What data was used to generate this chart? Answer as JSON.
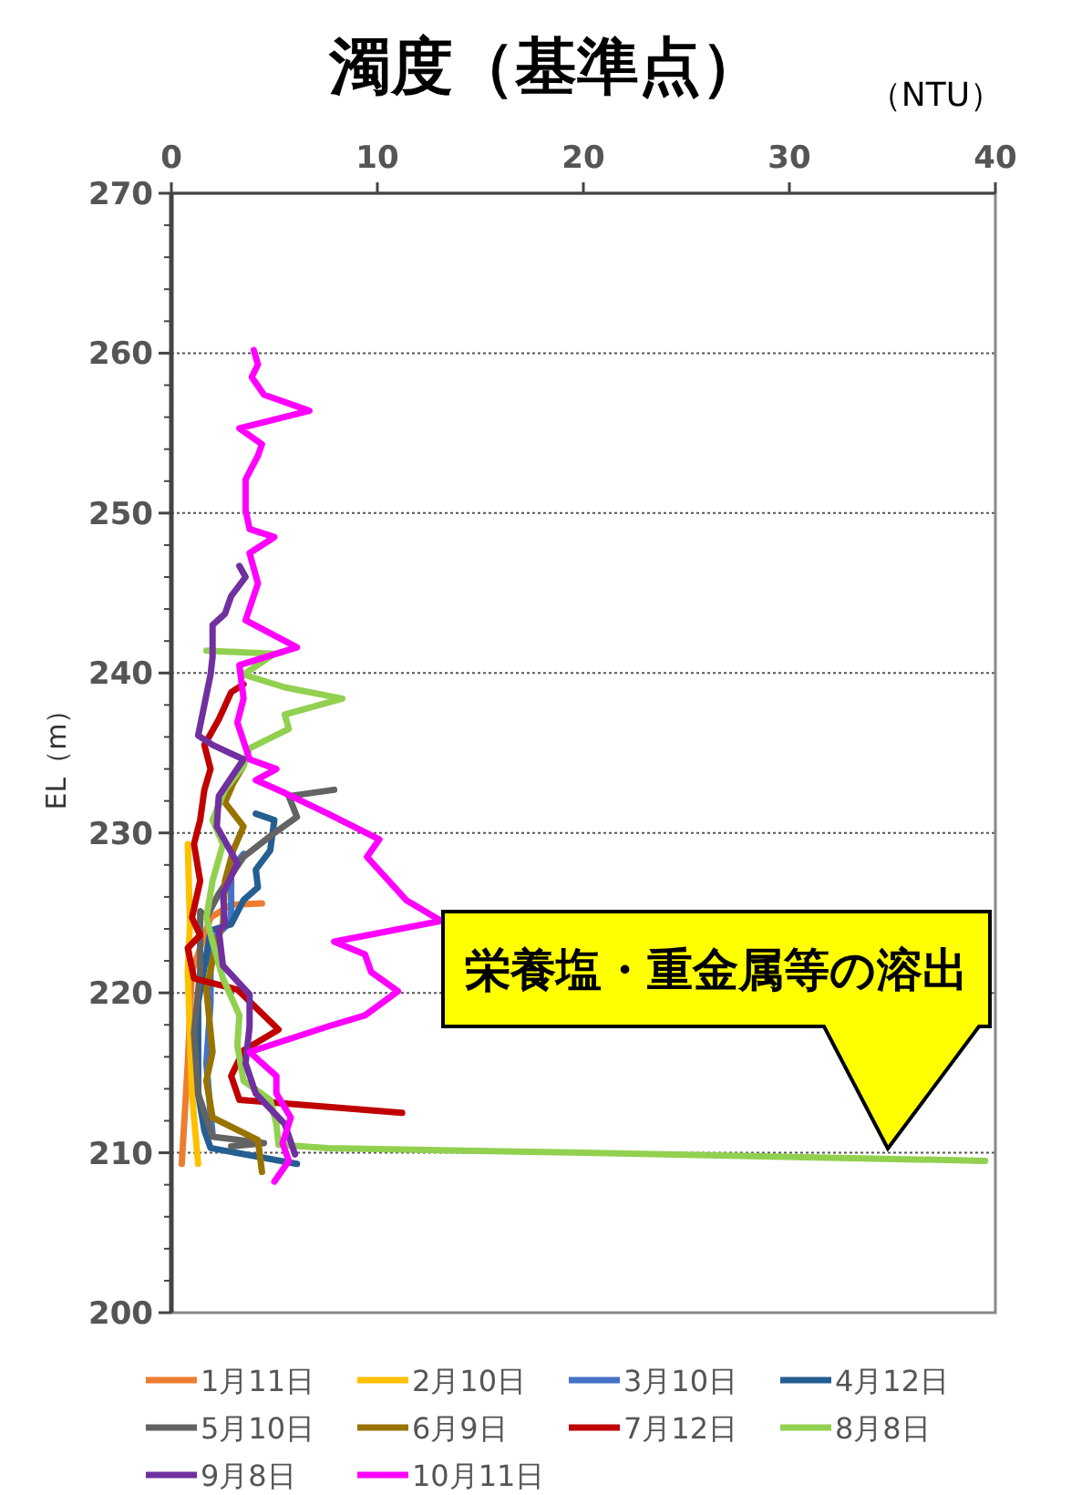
{
  "chart_data": {
    "type": "line",
    "title": "濁度（基準点）",
    "xlabel": "（NTU）",
    "ylabel": "EL（m）",
    "xlim": [
      0,
      40
    ],
    "xticks": [
      0,
      10,
      20,
      30,
      40
    ],
    "ylim": [
      200,
      270
    ],
    "yticks": [
      200,
      210,
      220,
      230,
      240,
      250,
      260,
      270
    ],
    "grid": "y",
    "legend": "bottom",
    "marker": "none",
    "line_style": "solid",
    "annotations": [
      "栄養塩・重金属等の溶出"
    ],
    "series": [
      {
        "name": "1月11日",
        "color": "#ed7d31",
        "x": [
          4.4,
          2.9,
          1.9,
          1.0,
          0.8,
          0.5
        ],
        "values": [
          225.6,
          225.5,
          224.7,
          221.3,
          215.6,
          209.3
        ]
      },
      {
        "name": "2月10日",
        "color": "#ffc000",
        "x": [
          0.8,
          0.9,
          0.8,
          1.0,
          1.3
        ],
        "values": [
          229.3,
          224.3,
          221.3,
          213.7,
          209.3
        ]
      },
      {
        "name": "3月10日",
        "color": "#4472c4",
        "x": [
          3.5,
          2.9,
          2.9,
          1.9,
          1.9,
          1.7,
          1.9,
          2.0
        ],
        "values": [
          228.7,
          227.7,
          224.5,
          223.2,
          219.4,
          215.6,
          212.5,
          211.2
        ]
      },
      {
        "name": "4月12日",
        "color": "#255e91",
        "x": [
          4.1,
          5.0,
          4.8,
          4.1,
          4.2,
          3.5,
          2.9,
          1.9,
          1.3,
          1.3,
          1.6,
          1.9,
          6.1
        ],
        "values": [
          231.2,
          230.8,
          228.9,
          227.7,
          226.6,
          225.8,
          224.3,
          223.9,
          219.4,
          213.7,
          211.4,
          210.3,
          209.3
        ]
      },
      {
        "name": "5月10日",
        "color": "#636363",
        "x": [
          7.9,
          5.7,
          6.1,
          5.0,
          3.5,
          2.3,
          1.7,
          1.4,
          1.4,
          1.1,
          1.3,
          2.0,
          4.5,
          2.9
        ],
        "values": [
          232.7,
          232.3,
          231.0,
          230.0,
          228.5,
          226.2,
          224.7,
          225.1,
          221.3,
          217.5,
          213.7,
          211.0,
          210.6,
          210.4
        ]
      },
      {
        "name": "6月9日",
        "color": "#997300",
        "x": [
          3.5,
          3.0,
          2.6,
          3.5,
          3.0,
          2.6,
          2.5,
          2.2,
          1.7,
          2.0,
          1.7,
          2.0,
          4.2,
          4.4
        ],
        "values": [
          234.2,
          233.1,
          231.9,
          230.4,
          228.9,
          227.0,
          224.3,
          223.2,
          220.2,
          216.3,
          214.5,
          212.2,
          210.8,
          208.8
        ]
      },
      {
        "name": "7月12日",
        "color": "#c00000",
        "x": [
          3.5,
          2.9,
          2.3,
          1.6,
          1.9,
          1.6,
          1.4,
          1.1,
          1.4,
          1.0,
          1.4,
          0.8,
          1.1,
          3.2,
          5.2,
          3.5,
          2.9,
          3.3,
          11.2
        ],
        "values": [
          239.3,
          238.8,
          237.1,
          235.5,
          234.0,
          232.7,
          230.8,
          229.3,
          227.0,
          224.7,
          223.6,
          222.8,
          220.9,
          220.2,
          217.7,
          216.4,
          214.8,
          213.3,
          212.5
        ]
      },
      {
        "name": "8月8日",
        "color": "#92d050",
        "x": [
          1.7,
          5.0,
          3.5,
          5.5,
          8.3,
          5.5,
          5.7,
          3.8,
          3.5,
          2.6,
          2.0,
          2.5,
          2.0,
          1.7,
          2.0,
          2.5,
          3.3,
          3.2,
          3.5,
          4.8,
          5.1,
          5.2,
          7.6,
          20,
          39.5
        ],
        "values": [
          241.4,
          241.2,
          239.9,
          239.1,
          238.4,
          237.4,
          236.5,
          235.3,
          234.2,
          232.7,
          230.8,
          229.3,
          227.0,
          224.7,
          223.2,
          220.9,
          218.6,
          216.7,
          214.5,
          213.3,
          211.8,
          210.5,
          210.3,
          210.0,
          209.5
        ]
      },
      {
        "name": "9月8日",
        "color": "#7030a0",
        "x": [
          3.3,
          3.6,
          2.9,
          2.6,
          2.0,
          2.0,
          1.9,
          1.3,
          2.0,
          3.5,
          2.3,
          2.2,
          3.2,
          2.5,
          2.6,
          2.3,
          2.5,
          3.8,
          3.8,
          3.6,
          4.1,
          5.5,
          6.0
        ],
        "values": [
          246.7,
          246.0,
          244.8,
          243.7,
          243.0,
          241.0,
          239.9,
          236.1,
          235.5,
          234.6,
          232.3,
          230.4,
          228.1,
          226.2,
          224.3,
          223.9,
          221.7,
          219.9,
          217.9,
          215.6,
          213.7,
          211.8,
          209.9
        ]
      },
      {
        "name": "10月11日",
        "color": "#ff00ff",
        "x": [
          4.0,
          4.2,
          3.9,
          4.5,
          6.7,
          3.3,
          4.4,
          4.2,
          3.6,
          3.6,
          3.8,
          5.0,
          3.8,
          4.2,
          3.6,
          6.1,
          3.3,
          3.5,
          3.2,
          3.8,
          5.1,
          4.1,
          5.5,
          7.6,
          10.1,
          9.5,
          11.4,
          13.1,
          7.9,
          9.4,
          9.7,
          11.0,
          9.4,
          7.6,
          3.8,
          5.1,
          5.1,
          5.8,
          5.4,
          5.7,
          5.0
        ],
        "values": [
          260.2,
          259.3,
          258.5,
          257.4,
          256.4,
          255.3,
          254.3,
          253.6,
          252.1,
          250.2,
          249.0,
          248.5,
          247.5,
          245.6,
          243.3,
          241.6,
          240.5,
          238.4,
          236.9,
          234.6,
          234.0,
          233.3,
          232.5,
          231.2,
          229.6,
          228.5,
          225.8,
          224.5,
          223.2,
          222.4,
          221.3,
          220.1,
          218.6,
          217.9,
          216.3,
          214.8,
          213.7,
          212.2,
          210.6,
          209.5,
          208.2
        ]
      }
    ]
  }
}
